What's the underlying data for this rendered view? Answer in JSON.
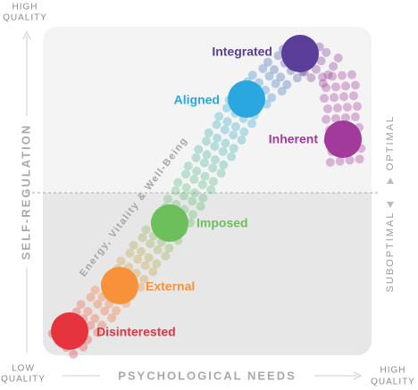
{
  "y_axis": {
    "label": "SELF-REGULATION",
    "high": [
      "HIGH",
      "QUALITY"
    ],
    "low": [
      "LOW",
      "QUALITY"
    ]
  },
  "x_axis": {
    "label": "PSYCHOLOGICAL NEEDS",
    "high": [
      "HIGH",
      "QUALITY"
    ]
  },
  "zones": {
    "upper": "OPTIMAL",
    "lower": "SUBOPTIMAL"
  },
  "trail_label": "Energy, Vitality & Well-Being",
  "nodes": [
    {
      "label": "Disinterested"
    },
    {
      "label": "External"
    },
    {
      "label": "Imposed"
    },
    {
      "label": "Aligned"
    },
    {
      "label": "Integrated"
    },
    {
      "label": "Inherent"
    }
  ]
}
